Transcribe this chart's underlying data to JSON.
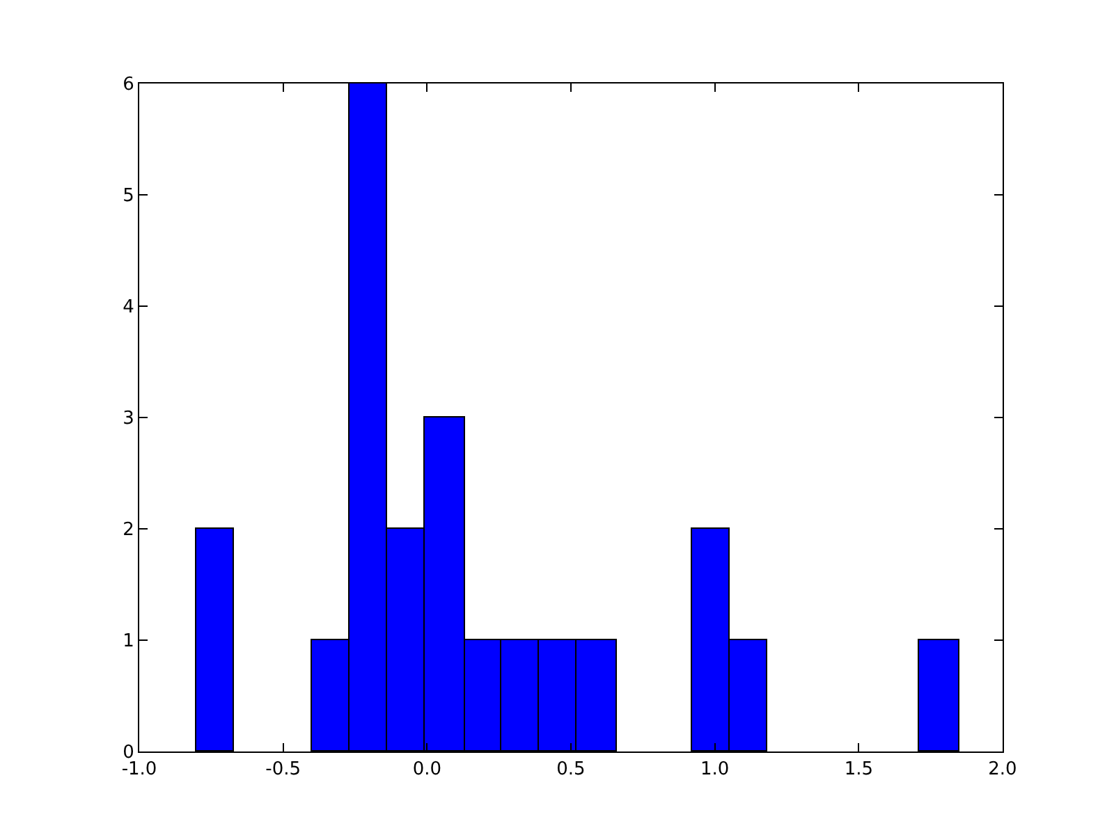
{
  "chart_data": {
    "type": "histogram",
    "bins": [
      -0.8,
      -0.67,
      -0.4,
      -0.27,
      -0.14,
      -0.01,
      0.13,
      0.26,
      0.39,
      0.52,
      0.66,
      0.92,
      1.05,
      1.18,
      1.71,
      1.85
    ],
    "values": [
      2,
      0,
      1,
      6,
      2,
      3,
      1,
      1,
      1,
      1,
      0,
      2,
      1,
      0,
      1
    ],
    "color": "#0000ff",
    "xlim": [
      -1.0,
      2.0
    ],
    "xticks": [
      {
        "value": -1.0,
        "label": "-1.0"
      },
      {
        "value": -0.5,
        "label": "-0.5"
      },
      {
        "value": 0.0,
        "label": "0.0"
      },
      {
        "value": 0.5,
        "label": "0.5"
      },
      {
        "value": 1.0,
        "label": "1.0"
      },
      {
        "value": 1.5,
        "label": "1.5"
      },
      {
        "value": 2.0,
        "label": "2.0"
      }
    ],
    "ylim": [
      0,
      6
    ],
    "yticks": [
      0,
      1,
      2,
      3,
      4,
      5,
      6
    ],
    "grid": false
  }
}
